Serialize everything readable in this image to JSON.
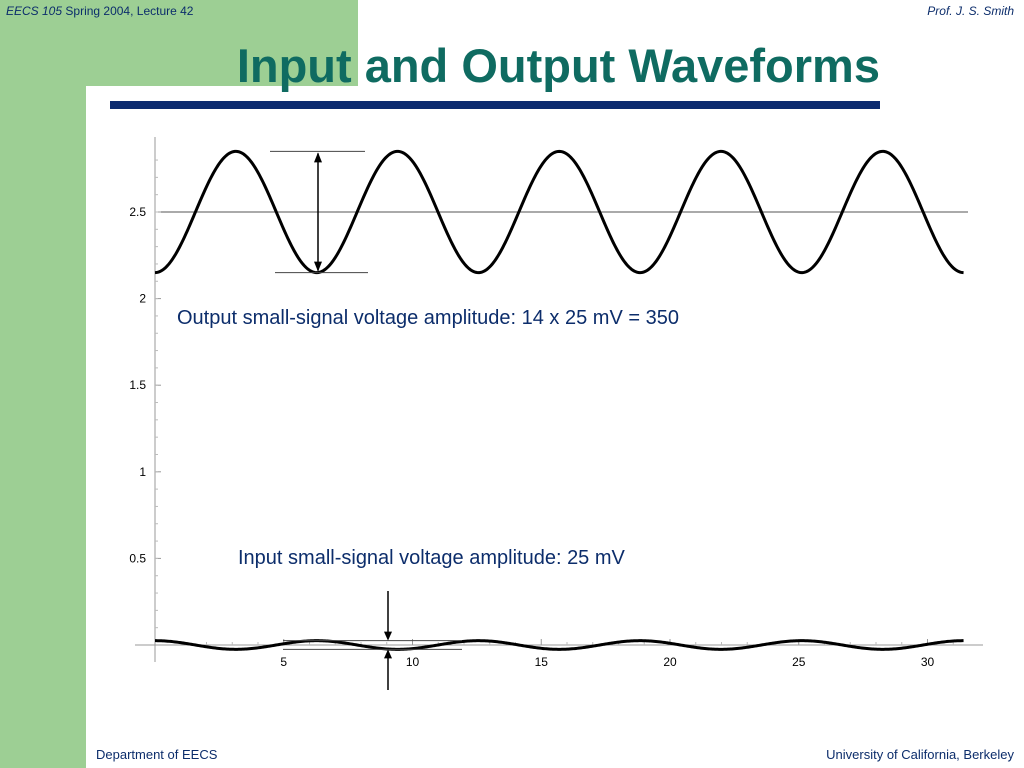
{
  "header": {
    "course": "EECS 105",
    "lecture": "Spring 2004, Lecture 42",
    "author": "Prof. J. S. Smith"
  },
  "title": "Input and Output Waveforms",
  "footer": {
    "department": "Department of EECS",
    "university": "University of California, Berkeley"
  },
  "colors": {
    "accent_green": "#9dcf94",
    "title_teal": "#0f6b61",
    "navy": "#0b2a6f"
  },
  "chart_data": {
    "type": "line",
    "title": "",
    "xlabel": "",
    "ylabel": "",
    "xlim": [
      0,
      32
    ],
    "ylim": [
      0,
      2.85
    ],
    "x_ticks": [
      5,
      10,
      15,
      20,
      25,
      30
    ],
    "y_ticks": [
      0.5,
      1,
      1.5,
      2,
      2.5
    ],
    "reference_line_y": 2.5,
    "series": [
      {
        "function": "sine",
        "offset": 2.5,
        "amplitude": 0.35,
        "period": 6.28,
        "x_range": [
          0,
          31.4
        ]
      },
      {
        "function": "sine",
        "offset": 0.0,
        "amplitude": 0.025,
        "period": 6.28,
        "x_range": [
          0,
          31.4
        ]
      }
    ],
    "annotations": [
      {
        "text": "Output small-signal voltage amplitude:  14 x 25 mV = 350"
      },
      {
        "text": "Input small-signal voltage amplitude:  25 mV"
      }
    ]
  }
}
